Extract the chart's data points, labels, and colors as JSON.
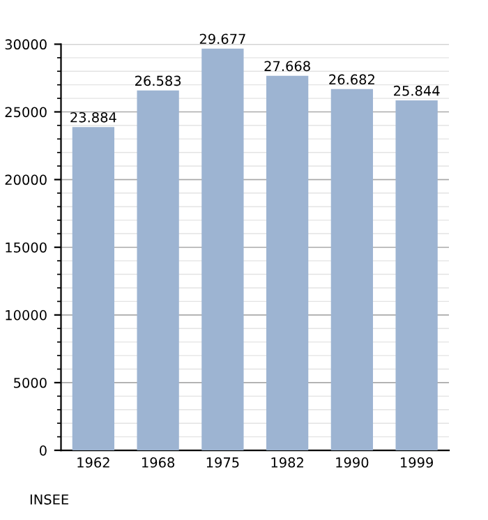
{
  "chart_data": {
    "type": "bar",
    "categories": [
      "1962",
      "1968",
      "1975",
      "1982",
      "1990",
      "1999"
    ],
    "values": [
      23884,
      26583,
      29677,
      27668,
      26682,
      25844
    ],
    "value_labels": [
      "23.884",
      "26.583",
      "29.677",
      "27.668",
      "26.682",
      "25.844"
    ],
    "color": "#9db4d2",
    "ylim": [
      0,
      30000
    ],
    "yticks": [
      0,
      5000,
      10000,
      15000,
      20000,
      25000,
      30000
    ],
    "grid": "y",
    "legend": false,
    "annotations": [
      "INSEE"
    ]
  }
}
